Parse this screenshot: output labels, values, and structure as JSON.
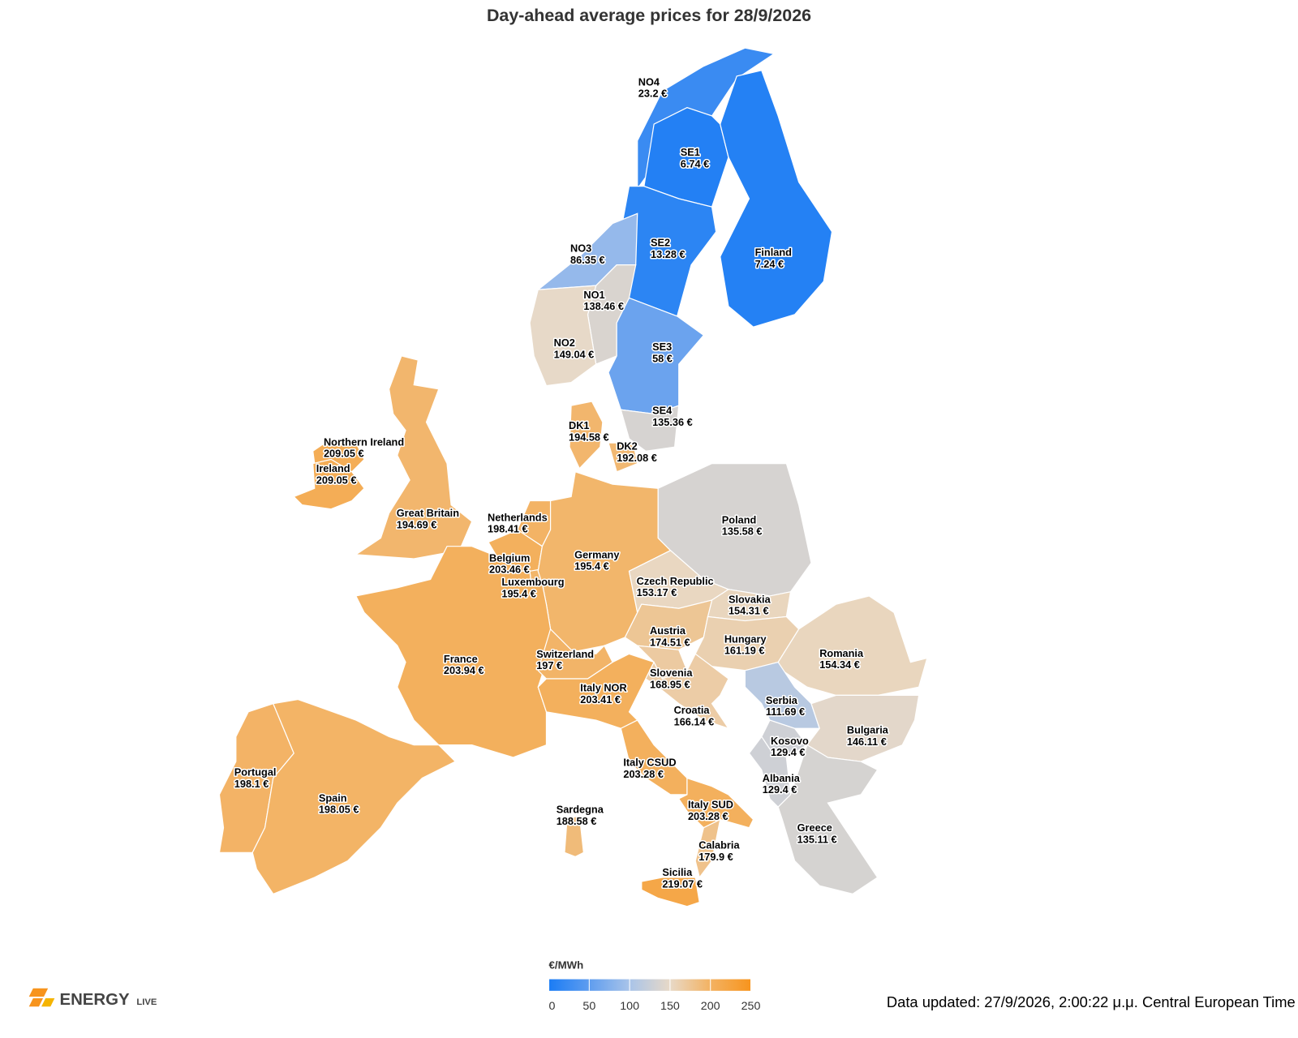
{
  "title": "Day-ahead average prices for 28/9/2026",
  "legend": {
    "title": "€/MWh",
    "ticks": [
      0,
      50,
      100,
      150,
      200,
      250
    ],
    "colors": [
      "#1a7cf5",
      "#5f9def",
      "#a9c4e9",
      "#e8d9c7",
      "#f3b262",
      "#f7941d"
    ]
  },
  "regions": [
    {
      "name": "NO4",
      "value": 23.2,
      "label": "23.2 €"
    },
    {
      "name": "SE1",
      "value": 6.74,
      "label": "6.74 €"
    },
    {
      "name": "SE2",
      "value": 13.28,
      "label": "13.28 €"
    },
    {
      "name": "Finland",
      "value": 7.24,
      "label": "7.24 €"
    },
    {
      "name": "NO3",
      "value": 86.35,
      "label": "86.35 €"
    },
    {
      "name": "NO1",
      "value": 138.46,
      "label": "138.46 €"
    },
    {
      "name": "NO2",
      "value": 149.04,
      "label": "149.04 €"
    },
    {
      "name": "SE3",
      "value": 58,
      "label": "58 €"
    },
    {
      "name": "SE4",
      "value": 135.36,
      "label": "135.36 €"
    },
    {
      "name": "DK1",
      "value": 194.58,
      "label": "194.58 €"
    },
    {
      "name": "DK2",
      "value": 192.08,
      "label": "192.08 €"
    },
    {
      "name": "Northern Ireland",
      "value": 209.05,
      "label": "209.05 €"
    },
    {
      "name": "Ireland",
      "value": 209.05,
      "label": "209.05 €"
    },
    {
      "name": "Great Britain",
      "value": 194.69,
      "label": "194.69 €"
    },
    {
      "name": "Netherlands",
      "value": 198.41,
      "label": "198.41 €"
    },
    {
      "name": "Belgium",
      "value": 203.46,
      "label": "203.46 €"
    },
    {
      "name": "Luxembourg",
      "value": 195.4,
      "label": "195.4 €"
    },
    {
      "name": "Germany",
      "value": 195.4,
      "label": "195.4 €"
    },
    {
      "name": "Poland",
      "value": 135.58,
      "label": "135.58 €"
    },
    {
      "name": "Czech Republic",
      "value": 153.17,
      "label": "153.17 €"
    },
    {
      "name": "Slovakia",
      "value": 154.31,
      "label": "154.31 €"
    },
    {
      "name": "Austria",
      "value": 174.51,
      "label": "174.51 €"
    },
    {
      "name": "Hungary",
      "value": 161.19,
      "label": "161.19 €"
    },
    {
      "name": "Romania",
      "value": 154.34,
      "label": "154.34 €"
    },
    {
      "name": "France",
      "value": 203.94,
      "label": "203.94 €"
    },
    {
      "name": "Switzerland",
      "value": 197,
      "label": "197 €"
    },
    {
      "name": "Italy NOR",
      "value": 203.41,
      "label": "203.41 €"
    },
    {
      "name": "Slovenia",
      "value": 168.95,
      "label": "168.95 €"
    },
    {
      "name": "Serbia",
      "value": 111.69,
      "label": "111.69 €"
    },
    {
      "name": "Croatia",
      "value": 166.14,
      "label": "166.14 €"
    },
    {
      "name": "Bulgaria",
      "value": 146.11,
      "label": "146.11 €"
    },
    {
      "name": "Kosovo",
      "value": 129.4,
      "label": "129.4 €"
    },
    {
      "name": "Portugal",
      "value": 198.1,
      "label": "198.1 €"
    },
    {
      "name": "Spain",
      "value": 198.05,
      "label": "198.05 €"
    },
    {
      "name": "Italy CSUD",
      "value": 203.28,
      "label": "203.28 €"
    },
    {
      "name": "Albania",
      "value": 129.4,
      "label": "129.4 €"
    },
    {
      "name": "Sardegna",
      "value": 188.58,
      "label": "188.58 €"
    },
    {
      "name": "Italy SUD",
      "value": 203.28,
      "label": "203.28 €"
    },
    {
      "name": "Greece",
      "value": 135.11,
      "label": "135.11 €"
    },
    {
      "name": "Calabria",
      "value": 179.9,
      "label": "179.9 €"
    },
    {
      "name": "Sicilia",
      "value": 219.07,
      "label": "219.07 €"
    }
  ],
  "footer": {
    "logo_main": "ENERGY",
    "logo_sub": "LIVE",
    "updated": "Data updated: 27/9/2026, 2:00:22 μ.μ. Central European Time"
  }
}
